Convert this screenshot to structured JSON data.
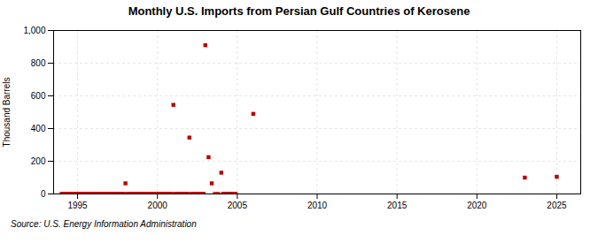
{
  "chart_data": {
    "type": "scatter",
    "title": "Monthly U.S. Imports from Persian Gulf Countries of Kerosene",
    "ylabel": "Thousand Barrels",
    "source": "Source: U.S. Energy Information Administration",
    "color": "#bb0000",
    "marker": "square",
    "grid": true,
    "xlim": [
      1993.5,
      2026.5
    ],
    "ylim": [
      0,
      1000
    ],
    "xticks": [
      1995,
      2000,
      2005,
      2010,
      2015,
      2020,
      2025
    ],
    "yticks": [
      0,
      200,
      400,
      600,
      800,
      {
        "value": 1000,
        "label": "1,000"
      }
    ],
    "x": [
      1994.0,
      1994.1,
      1994.2,
      1994.3,
      1994.4,
      1994.5,
      1994.6,
      1994.7,
      1994.8,
      1994.9,
      1995.0,
      1995.1,
      1995.2,
      1995.3,
      1995.4,
      1995.5,
      1995.6,
      1995.7,
      1995.8,
      1995.9,
      1996.0,
      1996.1,
      1996.2,
      1996.3,
      1996.4,
      1996.5,
      1996.6,
      1996.7,
      1996.8,
      1996.9,
      1997.0,
      1997.1,
      1997.2,
      1997.3,
      1997.4,
      1997.5,
      1997.6,
      1997.7,
      1997.8,
      1997.9,
      1998.0,
      1998.1,
      1998.2,
      1998.3,
      1998.4,
      1998.5,
      1998.6,
      1998.7,
      1998.8,
      1998.9,
      1999.0,
      1999.1,
      1999.2,
      1999.3,
      1999.4,
      1999.5,
      1999.6,
      1999.7,
      1999.8,
      1999.9,
      2000.0,
      2000.1,
      2000.2,
      2000.3,
      2000.4,
      2000.5,
      2000.6,
      2000.7,
      2000.8,
      2000.9,
      2001.0,
      2001.1,
      2001.2,
      2001.3,
      2001.4,
      2001.5,
      2001.6,
      2001.7,
      2001.8,
      2001.9,
      2002.0,
      2002.1,
      2002.2,
      2002.3,
      2002.4,
      2002.5,
      2002.6,
      2002.7,
      2002.8,
      2002.9,
      2003.0,
      2003.2,
      2003.4,
      2003.6,
      2003.8,
      2004.0,
      2004.1,
      2004.2,
      2004.3,
      2004.4,
      2004.5,
      2004.6,
      2004.7,
      2004.8,
      2004.9,
      2006.0,
      2023.0,
      2025.0
    ],
    "values": [
      0,
      0,
      0,
      0,
      0,
      0,
      0,
      0,
      0,
      0,
      0,
      0,
      0,
      0,
      0,
      0,
      0,
      0,
      0,
      0,
      0,
      0,
      0,
      0,
      0,
      0,
      0,
      0,
      0,
      0,
      0,
      0,
      0,
      0,
      0,
      0,
      0,
      0,
      0,
      0,
      65,
      0,
      0,
      0,
      0,
      0,
      0,
      0,
      0,
      0,
      0,
      0,
      0,
      0,
      0,
      0,
      0,
      0,
      0,
      0,
      0,
      0,
      0,
      0,
      0,
      0,
      0,
      0,
      0,
      0,
      545,
      0,
      0,
      0,
      0,
      0,
      0,
      0,
      0,
      0,
      345,
      0,
      0,
      0,
      0,
      0,
      0,
      0,
      0,
      0,
      910,
      225,
      65,
      0,
      0,
      130,
      0,
      0,
      0,
      0,
      0,
      0,
      0,
      0,
      0,
      490,
      100,
      105
    ]
  }
}
